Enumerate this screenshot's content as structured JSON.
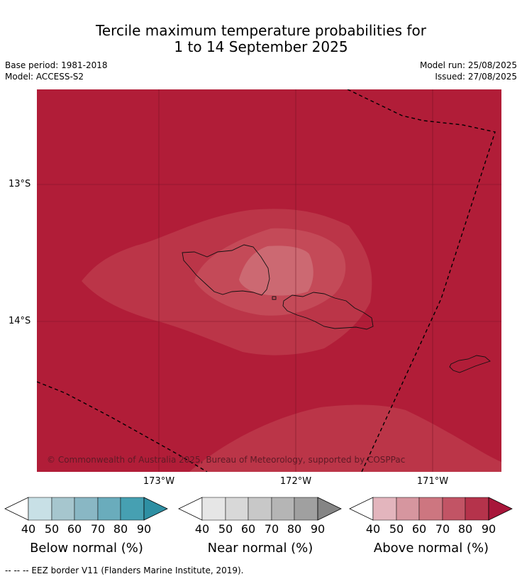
{
  "header": {
    "title_line1": "Tercile maximum temperature probabilities for",
    "title_line2": "1 to 14 September 2025",
    "base_period": "Base period: 1981-2018",
    "model": "Model: ACCESS-S2",
    "model_run": "Model run: 25/08/2025",
    "issued": "Issued: 27/08/2025"
  },
  "map": {
    "copyright": "© Commonwealth of Australia 2025, Bureau of Meteorology, supported by COSPPac",
    "lat_labels": [
      "13°S",
      "14°S"
    ],
    "lon_labels": [
      "173°W",
      "172°W",
      "171°W"
    ],
    "background_color": "#b11d38",
    "contour_colors": [
      "#bb3548",
      "#c44a58",
      "#cc6972"
    ],
    "islands": [
      "Savai'i",
      "Upolu",
      "Tutuila"
    ]
  },
  "legends": [
    {
      "caption": "Below normal (%)",
      "ticks": [
        "40",
        "50",
        "60",
        "70",
        "80",
        "90"
      ],
      "colors": [
        "#c8e0e6",
        "#a6c6ce",
        "#89b7c4",
        "#6aacbc",
        "#46a0b2",
        "#2e8fa3"
      ]
    },
    {
      "caption": "Near normal (%)",
      "ticks": [
        "40",
        "50",
        "60",
        "70",
        "80",
        "90"
      ],
      "colors": [
        "#e6e6e6",
        "#d8d8d8",
        "#c8c8c8",
        "#b5b5b5",
        "#a0a0a0",
        "#858585"
      ]
    },
    {
      "caption": "Above normal (%)",
      "ticks": [
        "40",
        "50",
        "60",
        "70",
        "80",
        "90"
      ],
      "colors": [
        "#e3b5bd",
        "#d6969f",
        "#cd7680",
        "#c25465",
        "#b5334b",
        "#a8163a"
      ]
    }
  ],
  "footnote": "--  --  -- EEZ border V11 (Flanders Marine Institute, 2019)."
}
